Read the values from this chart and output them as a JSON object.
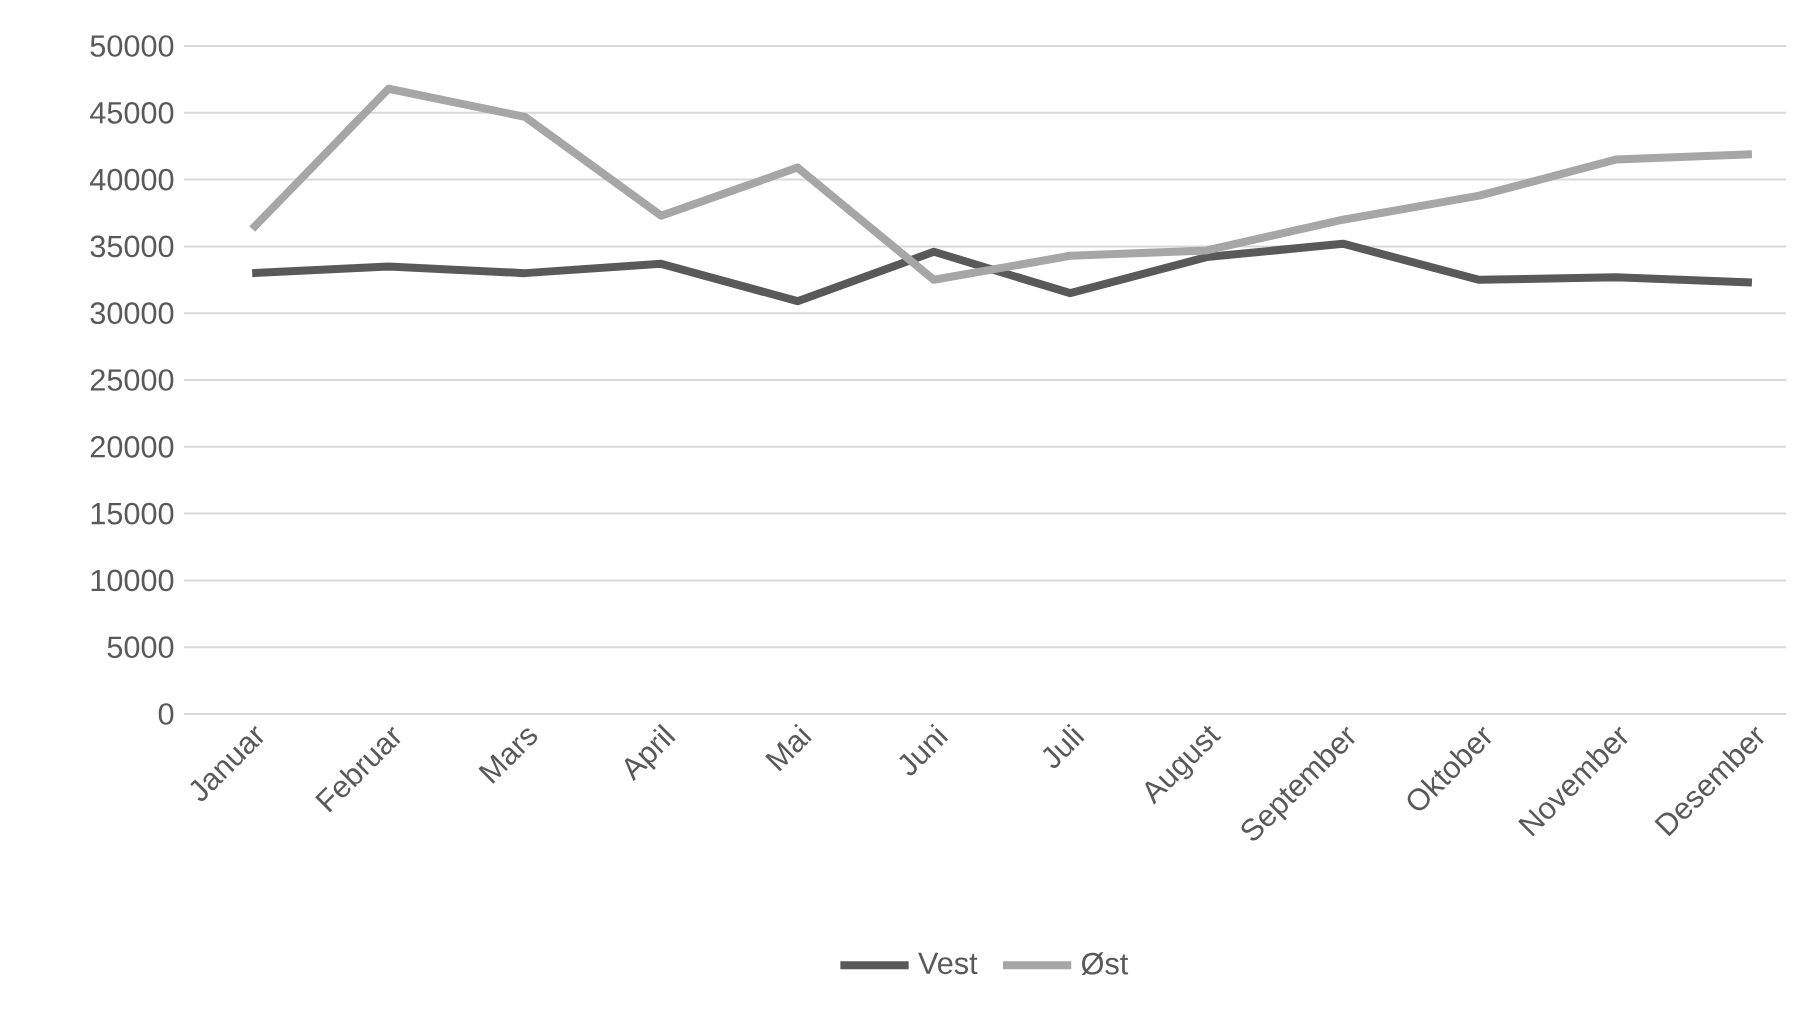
{
  "chart_data": {
    "type": "line",
    "categories": [
      "Januar",
      "Februar",
      "Mars",
      "April",
      "Mai",
      "Juni",
      "Juli",
      "August",
      "September",
      "Oktober",
      "November",
      "Desember"
    ],
    "series": [
      {
        "name": "Vest",
        "color": "#595959",
        "values": [
          33000,
          33500,
          33000,
          33700,
          30900,
          34600,
          31500,
          34200,
          35200,
          32500,
          32700,
          32300
        ]
      },
      {
        "name": "Øst",
        "color": "#a6a6a6",
        "values": [
          36300,
          46800,
          44700,
          37300,
          40900,
          32500,
          34300,
          34700,
          37000,
          38800,
          41500,
          41900
        ]
      }
    ],
    "ylim": [
      0,
      50000
    ],
    "yticks": [
      0,
      5000,
      10000,
      15000,
      20000,
      25000,
      30000,
      35000,
      40000,
      45000,
      50000
    ],
    "grid": "y",
    "legend": "bottom",
    "marker": "none",
    "line_style": "solid"
  }
}
